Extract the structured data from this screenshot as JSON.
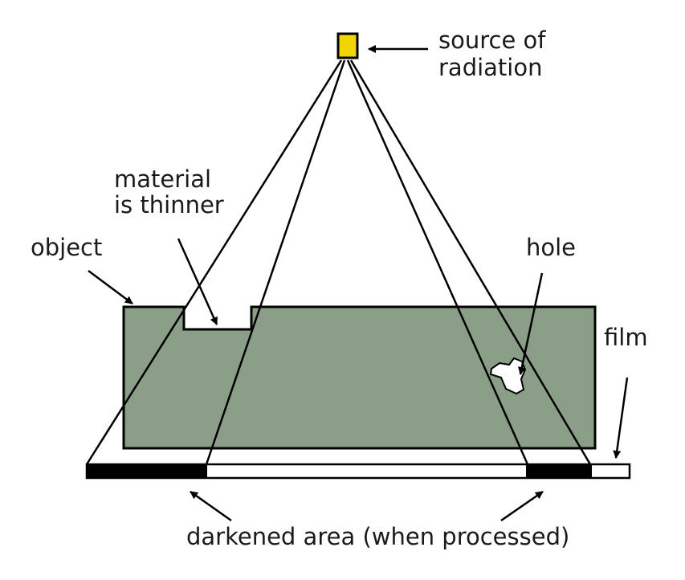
{
  "labels": {
    "source_line1": "source of",
    "source_line2": "radiation",
    "material_line1": "material",
    "material_line2": "is thinner",
    "object": "object",
    "hole": "hole",
    "film": "film",
    "darkened": "darkened area (when processed)"
  },
  "colors": {
    "source_fill": "#f2d400",
    "object_fill": "#8a9e88",
    "film_dark": "#000000",
    "film_light": "#ffffff",
    "line": "#000000"
  }
}
